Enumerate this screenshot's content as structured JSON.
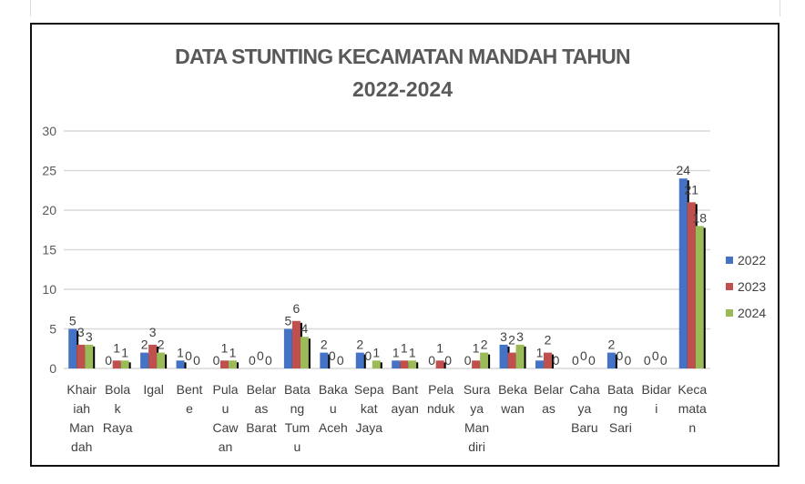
{
  "chart_data": {
    "type": "bar",
    "title": "DATA STUNTING KECAMATAN MANDAH TAHUN 2022-2024",
    "title_lines": [
      "DATA STUNTING KECAMATAN MANDAH TAHUN",
      "2022-2024"
    ],
    "categories": [
      "Khair iah Man dah",
      "Bola k Raya",
      "Igal",
      "Bent e",
      "Pula u Caw an",
      "Belar as Barat",
      "Bata ng Tum u",
      "Baka u Aceh",
      "Sepa kat Jaya",
      "Bant ayan",
      "Pela nduk",
      "Sura ya Man diri",
      "Beka wan",
      "Belar as",
      "Caha ya Baru",
      "Bata ng Sari",
      "Bidar i",
      "Keca mata n"
    ],
    "series": [
      {
        "name": "2022",
        "color": "#4472c4",
        "values": [
          5,
          0,
          2,
          1,
          0,
          0,
          5,
          2,
          2,
          1,
          0,
          0,
          3,
          1,
          0,
          2,
          0,
          24
        ]
      },
      {
        "name": "2023",
        "color": "#c0504d",
        "values": [
          3,
          1,
          3,
          0,
          1,
          0,
          6,
          0,
          0,
          1,
          1,
          1,
          2,
          2,
          0,
          0,
          0,
          21
        ]
      },
      {
        "name": "2024",
        "color": "#9bbb59",
        "values": [
          3,
          1,
          2,
          0,
          1,
          0,
          4,
          0,
          1,
          1,
          0,
          2,
          3,
          0,
          0,
          0,
          0,
          18
        ]
      }
    ],
    "ylim": [
      0,
      30
    ],
    "yticks": [
      0,
      5,
      10,
      15,
      20,
      25,
      30
    ],
    "xlabel": "",
    "ylabel": "",
    "grid": true,
    "legend": "right",
    "data_labels": true
  }
}
